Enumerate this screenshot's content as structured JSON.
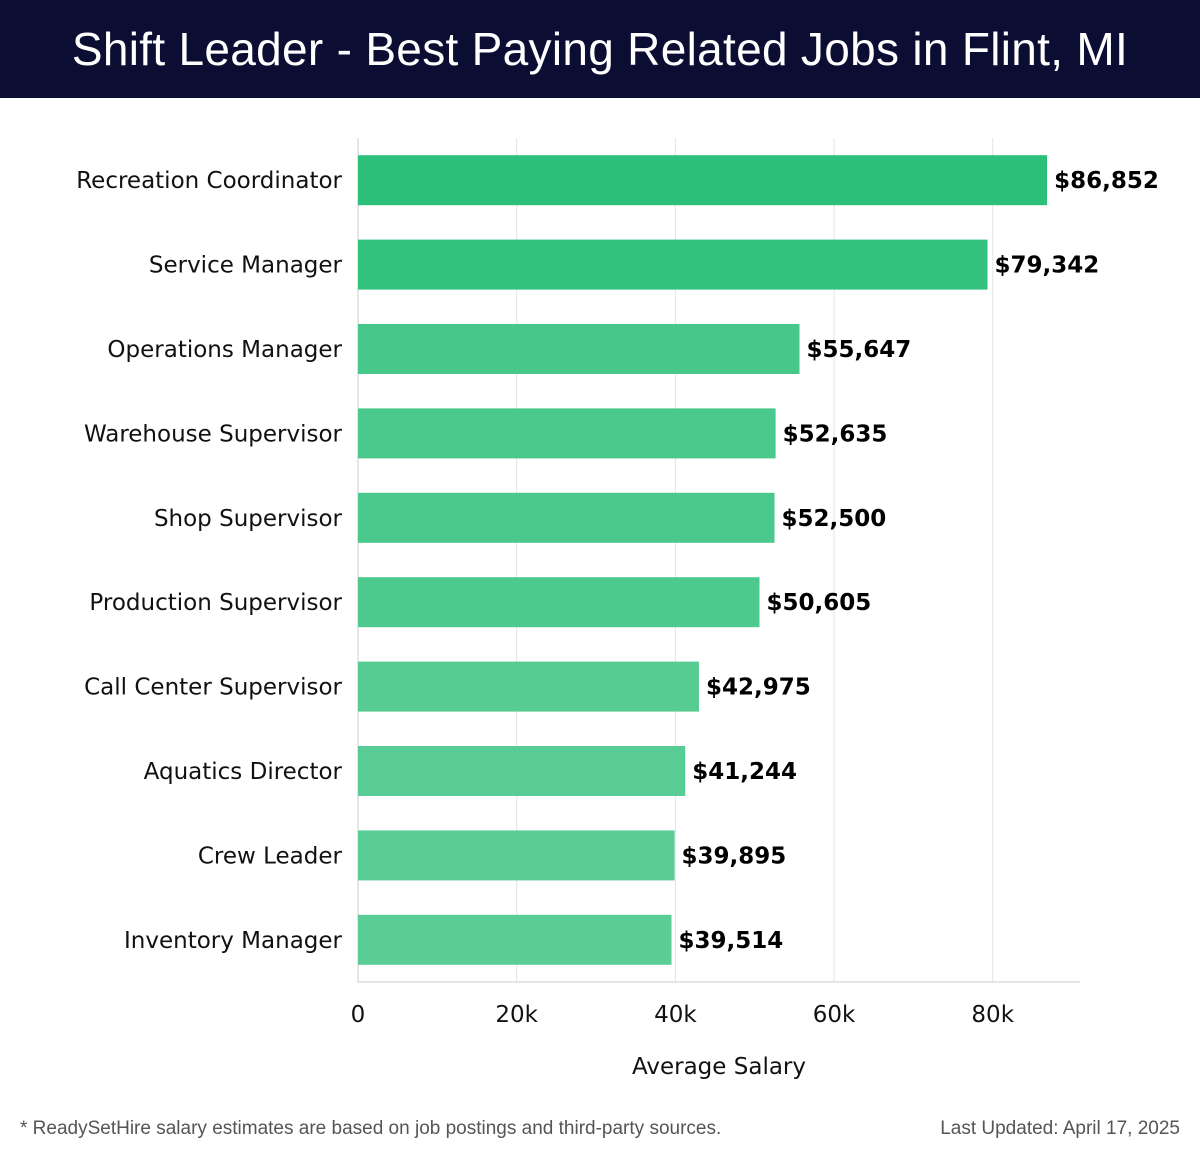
{
  "header": {
    "title": "Shift Leader - Best Paying Related Jobs in Flint, MI"
  },
  "chart_data": {
    "type": "bar",
    "orientation": "horizontal",
    "categories": [
      "Recreation Coordinator",
      "Service Manager",
      "Operations Manager",
      "Warehouse Supervisor",
      "Shop Supervisor",
      "Production Supervisor",
      "Call Center Supervisor",
      "Aquatics Director",
      "Crew Leader",
      "Inventory Manager"
    ],
    "values": [
      86852,
      79342,
      55647,
      52635,
      52500,
      50605,
      42975,
      41244,
      39895,
      39514
    ],
    "value_labels": [
      "$86,852",
      "$79,342",
      "$55,647",
      "$52,635",
      "$52,500",
      "$50,605",
      "$42,975",
      "$41,244",
      "$39,895",
      "$39,514"
    ],
    "colors": [
      "#2cc07a",
      "#33c27d",
      "#47c78a",
      "#4bc98c",
      "#4bc98c",
      "#4ec98d",
      "#56cc93",
      "#58cc94",
      "#59cd95",
      "#59cd95"
    ],
    "xlabel": "Average Salary",
    "ylabel": "",
    "xlim": [
      0,
      91000
    ],
    "xticks": [
      0,
      20000,
      40000,
      60000,
      80000
    ],
    "xtick_labels": [
      "0",
      "20k",
      "40k",
      "60k",
      "80k"
    ],
    "grid": true
  },
  "footer": {
    "note": "* ReadySetHire salary estimates are based on job postings and third-party sources.",
    "updated": "Last Updated: April 17, 2025"
  }
}
